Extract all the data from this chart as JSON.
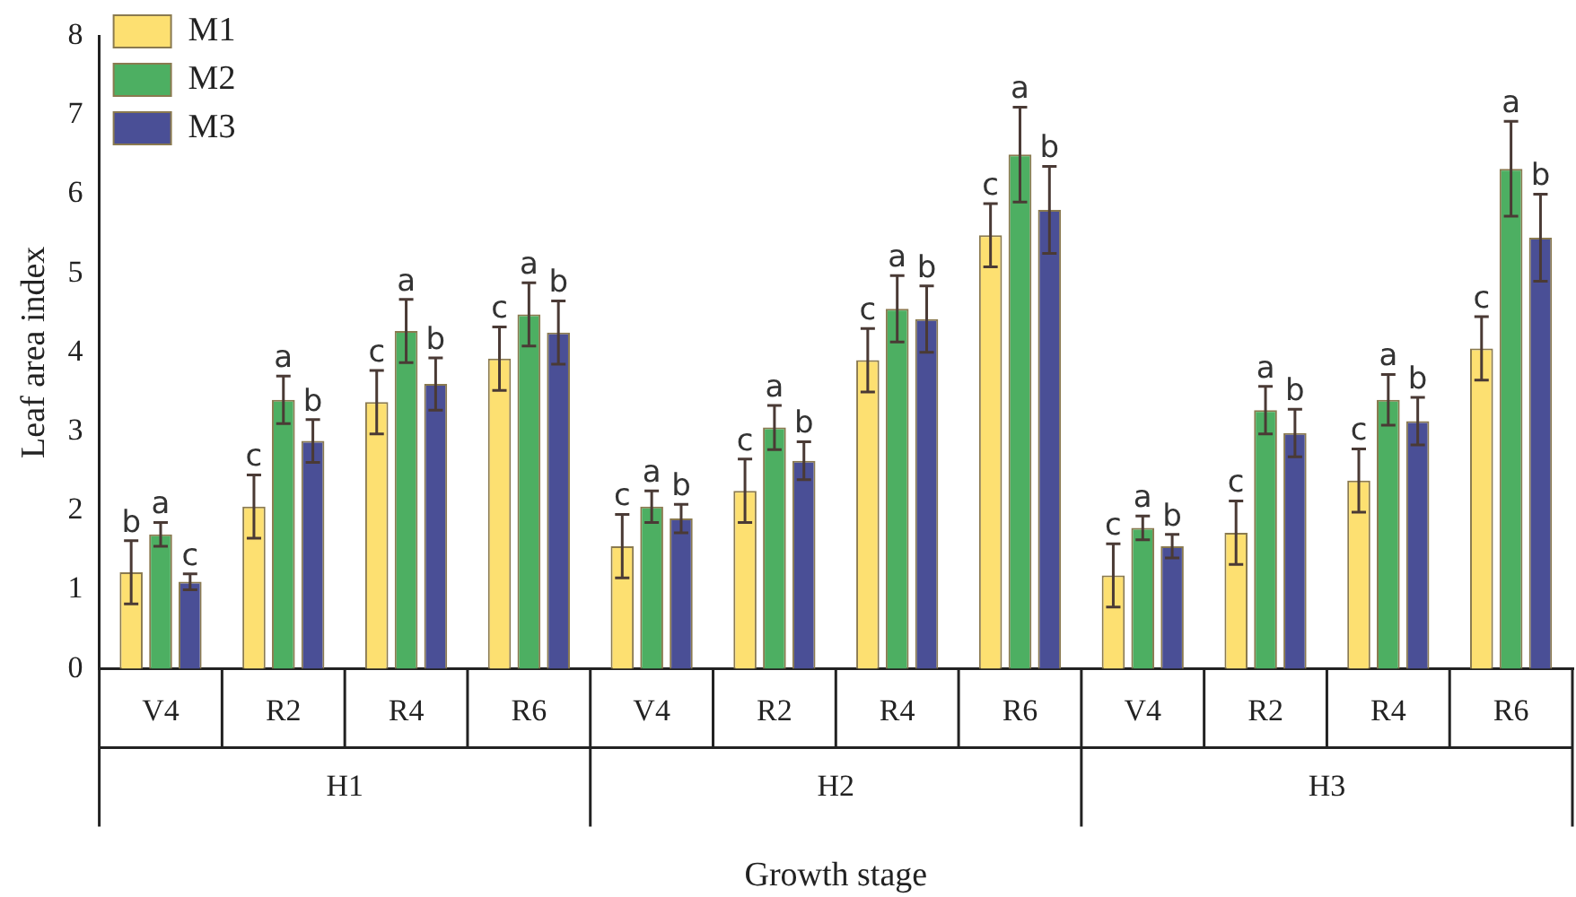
{
  "chart_data": {
    "type": "bar",
    "xlabel": "Growth stage",
    "ylabel": "Leaf area index",
    "categories": [
      "V4",
      "R2",
      "R4",
      "R6",
      "V4",
      "R2",
      "R4",
      "R6",
      "V4",
      "R2",
      "R4",
      "R6"
    ],
    "annotations": [
      "H1",
      "H2",
      "H3"
    ],
    "ylim": [
      0,
      8
    ],
    "yticks": [
      0,
      1,
      2,
      3,
      4,
      5,
      6,
      7,
      8
    ],
    "grid": false,
    "legend": "top left",
    "series": [
      {
        "name": "M1",
        "color": "#fde071",
        "values": [
          1.22,
          2.05,
          3.37,
          3.92,
          1.55,
          2.25,
          3.9,
          5.48,
          1.18,
          1.72,
          2.38,
          4.05
        ],
        "errors": [
          0.4,
          0.4,
          0.4,
          0.4,
          0.4,
          0.4,
          0.4,
          0.4,
          0.4,
          0.4,
          0.4,
          0.4
        ],
        "value_labels": [
          "b",
          "c",
          "c",
          "c",
          "c",
          "c",
          "c",
          "c",
          "c",
          "c",
          "c",
          "c"
        ]
      },
      {
        "name": "M2",
        "color": "#4daf62",
        "values": [
          1.7,
          3.4,
          4.27,
          4.48,
          2.05,
          3.05,
          4.55,
          6.5,
          1.78,
          3.27,
          3.4,
          6.32
        ],
        "errors": [
          0.15,
          0.3,
          0.4,
          0.4,
          0.2,
          0.28,
          0.42,
          0.6,
          0.15,
          0.3,
          0.32,
          0.6
        ],
        "value_labels": [
          "a",
          "a",
          "a",
          "a",
          "a",
          "a",
          "a",
          "a",
          "a",
          "a",
          "a",
          "a"
        ]
      },
      {
        "name": "M3",
        "color": "#4a4f96",
        "values": [
          1.1,
          2.88,
          3.6,
          4.25,
          1.9,
          2.63,
          4.42,
          5.8,
          1.55,
          2.98,
          3.13,
          5.45
        ],
        "errors": [
          0.1,
          0.27,
          0.33,
          0.4,
          0.18,
          0.24,
          0.42,
          0.55,
          0.15,
          0.3,
          0.3,
          0.55
        ],
        "value_labels": [
          "c",
          "b",
          "b",
          "b",
          "b",
          "b",
          "b",
          "b",
          "b",
          "b",
          "b",
          "b"
        ]
      }
    ]
  }
}
